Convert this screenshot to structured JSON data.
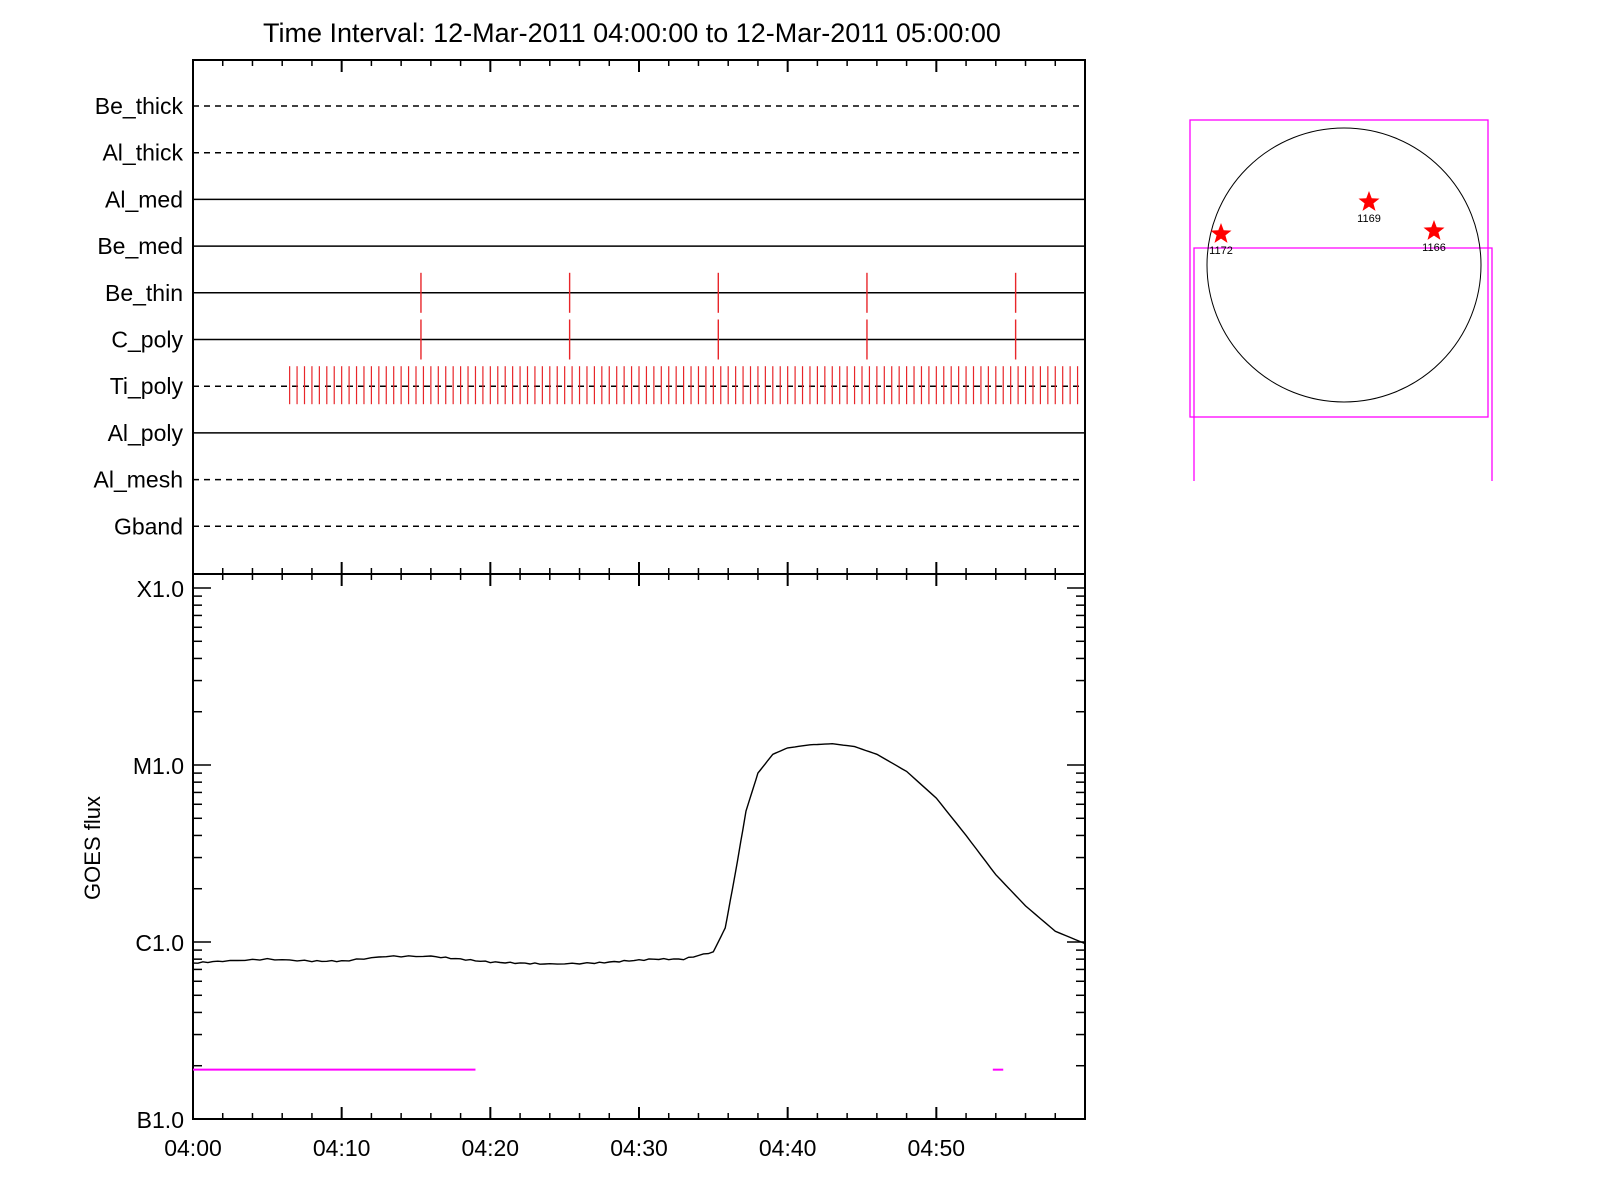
{
  "chart_data": [
    {
      "type": "timeline",
      "title": "Time Interval: 12-Mar-2011 04:00:00 to 12-Mar-2011 05:00:00",
      "x_range": [
        "04:00",
        "05:00"
      ],
      "x_tick_labels": [
        "04:00",
        "04:10",
        "04:20",
        "04:30",
        "04:40",
        "04:50"
      ],
      "filters": [
        {
          "name": "Be_thick",
          "line": "dashed",
          "marks": []
        },
        {
          "name": "Al_thick",
          "line": "dashed",
          "marks": []
        },
        {
          "name": "Al_med",
          "line": "solid",
          "marks": []
        },
        {
          "name": "Be_med",
          "line": "solid",
          "marks": []
        },
        {
          "name": "Be_thin",
          "line": "solid",
          "marks": [
            "04:15:20",
            "04:25:20",
            "04:35:20",
            "04:45:20",
            "04:55:20"
          ]
        },
        {
          "name": "C_poly",
          "line": "solid",
          "marks": [
            "04:15:20",
            "04:25:20",
            "04:35:20",
            "04:45:20",
            "04:55:20"
          ]
        },
        {
          "name": "Ti_poly",
          "line": "dashed",
          "mark_series": {
            "start_min": 6.5,
            "end_min": 59.6,
            "interval_s": 30
          }
        },
        {
          "name": "Al_poly",
          "line": "solid",
          "marks": []
        },
        {
          "name": "Al_mesh",
          "line": "dashed",
          "marks": []
        },
        {
          "name": "Gband",
          "line": "dashed",
          "marks": []
        }
      ],
      "mark_color": "#e8262a"
    },
    {
      "type": "line",
      "ylabel": "GOES flux",
      "y_scale": "log",
      "y_tick_labels": [
        {
          "label": "B1.0",
          "value": 1e-07
        },
        {
          "label": "C1.0",
          "value": 1e-06
        },
        {
          "label": "M1.0",
          "value": 1e-05
        },
        {
          "label": "X1.0",
          "value": 0.0001
        }
      ],
      "ylim": [
        1e-07,
        0.00012
      ],
      "x_minutes_range": [
        0,
        60
      ],
      "series": [
        {
          "values": [
            [
              0,
              7.6e-07
            ],
            [
              2,
              7.8e-07
            ],
            [
              5,
              8e-07
            ],
            [
              8,
              7.8e-07
            ],
            [
              10,
              7.8e-07
            ],
            [
              13,
              8.3e-07
            ],
            [
              16,
              8.3e-07
            ],
            [
              18,
              8e-07
            ],
            [
              20,
              7.7e-07
            ],
            [
              22,
              7.6e-07
            ],
            [
              24,
              7.5e-07
            ],
            [
              27,
              7.6e-07
            ],
            [
              29,
              7.8e-07
            ],
            [
              31,
              8e-07
            ],
            [
              33,
              8e-07
            ],
            [
              35,
              8.8e-07
            ],
            [
              35.8,
              1.2e-06
            ],
            [
              36.5,
              2.5e-06
            ],
            [
              37.2,
              5.5e-06
            ],
            [
              38,
              9e-06
            ],
            [
              39,
              1.15e-05
            ],
            [
              40,
              1.25e-05
            ],
            [
              41.5,
              1.3e-05
            ],
            [
              43,
              1.32e-05
            ],
            [
              44.5,
              1.27e-05
            ],
            [
              46,
              1.15e-05
            ],
            [
              48,
              9.2e-06
            ],
            [
              50,
              6.5e-06
            ],
            [
              52,
              4e-06
            ],
            [
              54,
              2.4e-06
            ],
            [
              56,
              1.6e-06
            ],
            [
              58,
              1.15e-06
            ],
            [
              60,
              9.8e-07
            ]
          ],
          "color": "#000000"
        }
      ],
      "bars": [
        {
          "start_min": 0,
          "end_min": 19,
          "level": 1.9e-07
        },
        {
          "start_min": 53.8,
          "end_min": 54.5,
          "level": 1.9e-07
        }
      ],
      "bar_color": "#ff00ff"
    },
    {
      "type": "solar_disk",
      "regions": [
        {
          "label": "1172"
        },
        {
          "label": "1169"
        },
        {
          "label": "1166"
        }
      ],
      "star_color": "#ff0000",
      "box_color": "#ff00ff"
    }
  ]
}
